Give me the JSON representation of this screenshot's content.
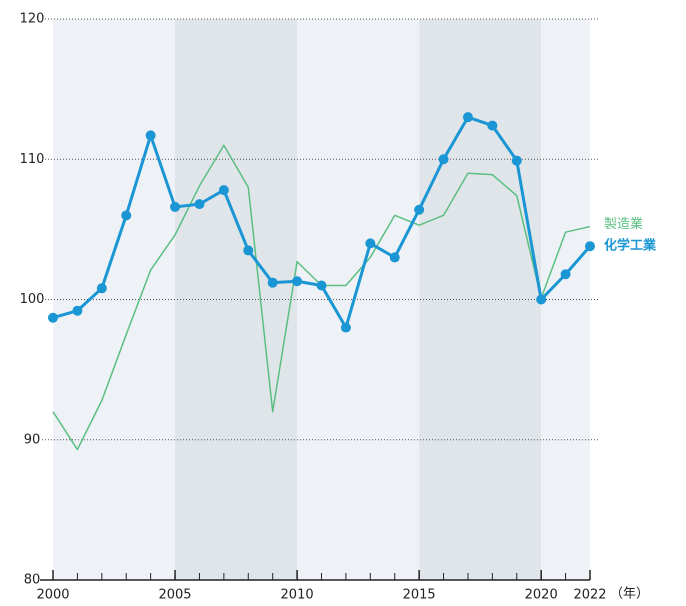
{
  "chart_data": {
    "type": "line",
    "x": [
      2000,
      2001,
      2002,
      2003,
      2004,
      2005,
      2006,
      2007,
      2008,
      2009,
      2010,
      2011,
      2012,
      2013,
      2014,
      2015,
      2016,
      2017,
      2018,
      2019,
      2020,
      2021,
      2022
    ],
    "series": [
      {
        "name": "製造業",
        "color": "#5cbf82",
        "values": [
          92.0,
          89.3,
          92.8,
          97.5,
          102.1,
          104.6,
          108.1,
          111.0,
          108.0,
          92.0,
          102.7,
          101.0,
          101.0,
          103.0,
          106.0,
          105.3,
          106.0,
          109.0,
          108.9,
          107.4,
          100.1,
          104.8,
          105.2
        ]
      },
      {
        "name": "化学工業",
        "color": "#1a96d4",
        "values": [
          98.7,
          99.2,
          100.8,
          106.0,
          111.7,
          106.6,
          106.8,
          107.8,
          103.5,
          101.2,
          101.3,
          101.0,
          98.0,
          104.0,
          103.0,
          106.4,
          110.0,
          113.0,
          112.4,
          109.9,
          100.0,
          101.8,
          103.8
        ]
      }
    ],
    "xlabel": "（年）",
    "xlim": [
      2000,
      2022
    ],
    "xticks": [
      2000,
      2005,
      2010,
      2015,
      2020,
      2022
    ],
    "ylim": [
      80,
      120
    ],
    "yticks": [
      80,
      90,
      100,
      110,
      120
    ],
    "grid": true
  }
}
